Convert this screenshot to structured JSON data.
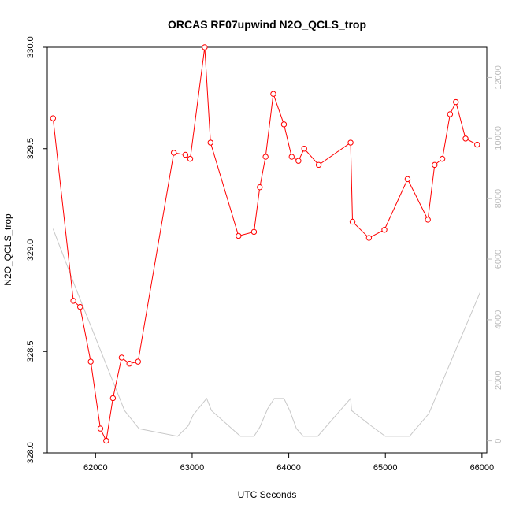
{
  "chart_data": {
    "type": "line",
    "title": "ORCAS RF07upwind N2O_QCLS_trop",
    "xlabel": "UTC Seconds",
    "ylabel": "N2O_QCLS_trop",
    "xlim": [
      61500,
      66050
    ],
    "ylim": [
      328.0,
      330.0
    ],
    "y2lim": [
      -400,
      13000
    ],
    "grid": false,
    "xticks": [
      62000,
      63000,
      64000,
      65000,
      66000
    ],
    "xtick_labels": [
      "62000",
      "63000",
      "64000",
      "65000",
      "66000"
    ],
    "yticks": [
      328.0,
      328.5,
      329.0,
      329.5,
      330.0
    ],
    "ytick_labels": [
      "328.0",
      "328.5",
      "329.0",
      "329.5",
      "330.0"
    ],
    "y2ticks": [
      0,
      2000,
      4000,
      6000,
      8000,
      10000,
      12000
    ],
    "y2tick_labels": [
      "0",
      "2000",
      "4000",
      "6000",
      "8000",
      "10000",
      "12000"
    ],
    "series": [
      {
        "color": "#ff0000",
        "marker": "circle-open",
        "axis": "left",
        "x": [
          61560,
          61770,
          61840,
          61950,
          62050,
          62110,
          62180,
          62270,
          62350,
          62440,
          62810,
          62930,
          62980,
          63130,
          63190,
          63480,
          63640,
          63700,
          63760,
          63840,
          63950,
          64030,
          64100,
          64160,
          64310,
          64640,
          64660,
          64830,
          64990,
          65230,
          65440,
          65510,
          65590,
          65670,
          65730,
          65830,
          65950
        ],
        "y": [
          329.65,
          328.75,
          328.72,
          328.45,
          328.12,
          328.06,
          328.27,
          328.47,
          328.44,
          328.45,
          329.48,
          329.47,
          329.45,
          330.0,
          329.53,
          329.07,
          329.09,
          329.31,
          329.46,
          329.77,
          329.62,
          329.46,
          329.44,
          329.5,
          329.42,
          329.53,
          329.14,
          329.06,
          329.1,
          329.35,
          329.15,
          329.42,
          329.45,
          329.67,
          329.73,
          329.55,
          329.52
        ]
      },
      {
        "color": "#c8c8c8",
        "marker": "none",
        "axis": "right",
        "x": [
          61560,
          61800,
          62050,
          62300,
          62450,
          62850,
          62960,
          63010,
          63150,
          63200,
          63500,
          63640,
          63700,
          63780,
          63850,
          63950,
          64010,
          64080,
          64150,
          64300,
          64640,
          64650,
          64850,
          65000,
          65250,
          65450,
          65980
        ],
        "y": [
          7000,
          5000,
          3000,
          1000,
          400,
          150,
          500,
          850,
          1400,
          1000,
          150,
          150,
          450,
          1050,
          1400,
          1400,
          1000,
          400,
          150,
          150,
          1400,
          1000,
          500,
          150,
          150,
          900,
          4900
        ]
      }
    ]
  }
}
